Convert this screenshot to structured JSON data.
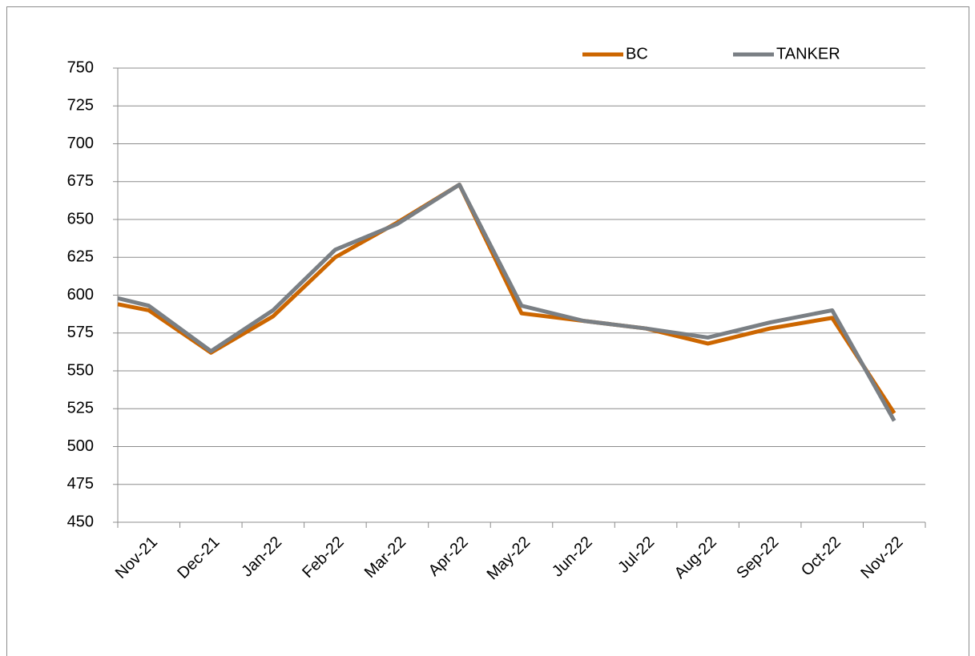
{
  "chart_data": {
    "type": "line",
    "categories": [
      null,
      "Nov-21",
      "Dec-21",
      "Jan-22",
      "Feb-22",
      "Mar-22",
      "Apr-22",
      "May-22",
      "Jun-22",
      "Jul-22",
      "Aug-22",
      "Sep-22",
      "Oct-22",
      "Nov-22"
    ],
    "series": [
      {
        "name": "BC",
        "color": "#cc6600",
        "values": [
          594,
          590,
          562,
          586,
          625,
          648,
          673,
          588,
          583,
          578,
          568,
          578,
          585,
          522
        ]
      },
      {
        "name": "TANKER",
        "color": "#7a7f84",
        "values": [
          598,
          593,
          563,
          590,
          630,
          647,
          673,
          593,
          583,
          578,
          572,
          582,
          590,
          517
        ]
      }
    ],
    "ylim": [
      450,
      750
    ],
    "yticks": [
      450,
      475,
      500,
      525,
      550,
      575,
      600,
      625,
      650,
      675,
      700,
      725,
      750
    ],
    "grid": true,
    "legend": "top"
  }
}
